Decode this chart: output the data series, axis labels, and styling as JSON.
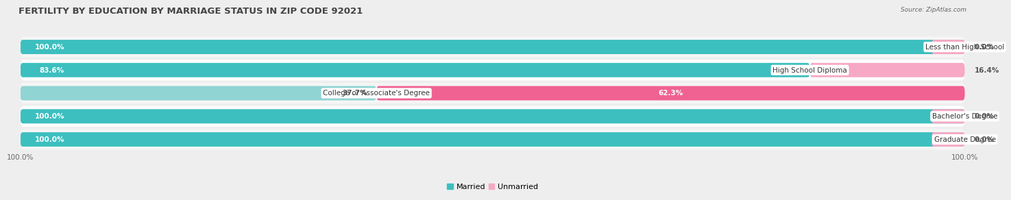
{
  "title": "FERTILITY BY EDUCATION BY MARRIAGE STATUS IN ZIP CODE 92021",
  "source": "Source: ZipAtlas.com",
  "categories": [
    "Less than High School",
    "High School Diploma",
    "College or Associate's Degree",
    "Bachelor's Degree",
    "Graduate Degree"
  ],
  "married": [
    100.0,
    83.6,
    37.7,
    100.0,
    100.0
  ],
  "unmarried": [
    0.0,
    16.4,
    62.3,
    0.0,
    0.0
  ],
  "married_color": "#3dbfbf",
  "unmarried_color_strong": "#f06292",
  "unmarried_color_light": "#f7a8c4",
  "married_light_color": "#90d4d4",
  "row_colors": [
    "#f5f5f5",
    "#ffffff",
    "#f5f5f5",
    "#ffffff",
    "#f5f5f5"
  ],
  "bar_height": 0.62,
  "background_color": "#eeeeee",
  "title_fontsize": 9.5,
  "label_fontsize": 7.5,
  "tick_fontsize": 7.5,
  "legend_fontsize": 8.0,
  "xlim": [
    0,
    100
  ],
  "bottom_tick_left": "100.0%",
  "bottom_tick_right": "100.0%"
}
